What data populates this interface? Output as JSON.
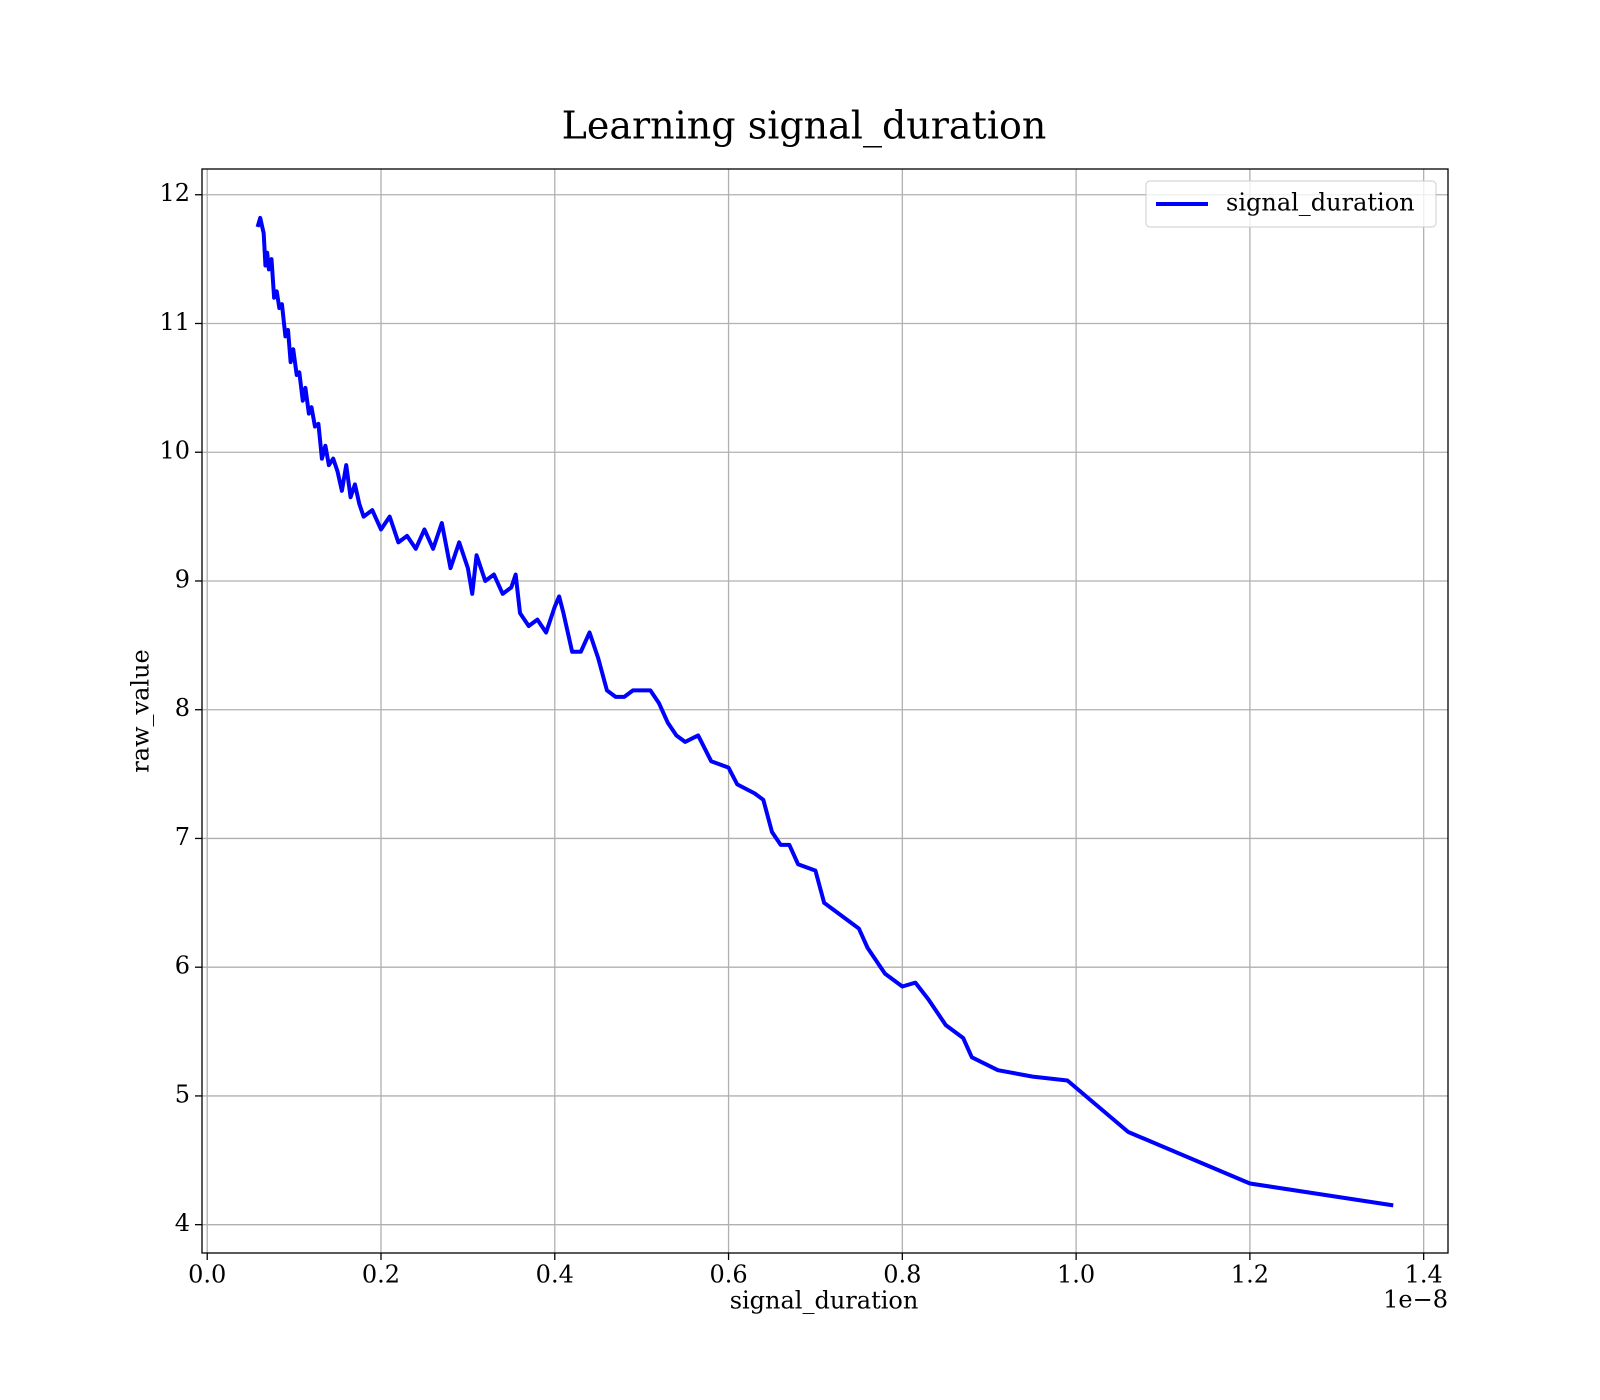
{
  "chart_data": {
    "type": "line",
    "title": "Learning signal_duration",
    "xlabel": "signal_duration",
    "ylabel": "raw_value",
    "x_offset_label": "1e−8",
    "x": [
      5.8e-10,
      6.1e-10,
      6.5e-10,
      6.7e-10,
      6.9e-10,
      7.1e-10,
      7.4e-10,
      7.7e-10,
      8e-10,
      8.3e-10,
      8.6e-10,
      9e-10,
      9.3e-10,
      9.6e-10,
      9.9e-10,
      1.03e-09,
      1.06e-09,
      1.1e-09,
      1.13e-09,
      1.17e-09,
      1.2e-09,
      1.24e-09,
      1.28e-09,
      1.32e-09,
      1.36e-09,
      1.4e-09,
      1.45e-09,
      1.5e-09,
      1.55e-09,
      1.6e-09,
      1.65e-09,
      1.7e-09,
      1.75e-09,
      1.8e-09,
      1.9e-09,
      2e-09,
      2.1e-09,
      2.2e-09,
      2.3e-09,
      2.4e-09,
      2.5e-09,
      2.6e-09,
      2.7e-09,
      2.8e-09,
      2.9e-09,
      3e-09,
      3.05e-09,
      3.1e-09,
      3.2e-09,
      3.3e-09,
      3.4e-09,
      3.5e-09,
      3.55e-09,
      3.6e-09,
      3.7e-09,
      3.8e-09,
      3.9e-09,
      4e-09,
      4.05e-09,
      4.1e-09,
      4.2e-09,
      4.3e-09,
      4.4e-09,
      4.5e-09,
      4.6e-09,
      4.7e-09,
      4.8e-09,
      4.9e-09,
      5e-09,
      5.1e-09,
      5.2e-09,
      5.3e-09,
      5.4e-09,
      5.5e-09,
      5.65e-09,
      5.8e-09,
      6e-09,
      6.1e-09,
      6.3e-09,
      6.4e-09,
      6.5e-09,
      6.6e-09,
      6.7e-09,
      6.8e-09,
      7e-09,
      7.1e-09,
      7.2e-09,
      7.4e-09,
      7.5e-09,
      7.6e-09,
      7.8e-09,
      8e-09,
      8.15e-09,
      8.3e-09,
      8.5e-09,
      8.7e-09,
      8.8e-09,
      9.1e-09,
      9.5e-09,
      9.9e-09,
      1.06e-08,
      1.2e-08,
      1.365e-08
    ],
    "series": [
      {
        "name": "signal_duration",
        "color": "#0000ff",
        "values": [
          11.75,
          11.82,
          11.7,
          11.45,
          11.55,
          11.42,
          11.5,
          11.2,
          11.25,
          11.12,
          11.15,
          10.9,
          10.95,
          10.7,
          10.8,
          10.6,
          10.62,
          10.4,
          10.5,
          10.3,
          10.35,
          10.2,
          10.22,
          9.95,
          10.05,
          9.9,
          9.95,
          9.85,
          9.7,
          9.9,
          9.65,
          9.75,
          9.6,
          9.5,
          9.55,
          9.4,
          9.5,
          9.3,
          9.35,
          9.25,
          9.4,
          9.25,
          9.45,
          9.1,
          9.3,
          9.1,
          8.9,
          9.2,
          9.0,
          9.05,
          8.9,
          8.95,
          9.05,
          8.75,
          8.65,
          8.7,
          8.6,
          8.8,
          8.88,
          8.75,
          8.45,
          8.45,
          8.6,
          8.4,
          8.15,
          8.1,
          8.1,
          8.15,
          8.15,
          8.15,
          8.05,
          7.9,
          7.8,
          7.75,
          7.8,
          7.6,
          7.55,
          7.42,
          7.35,
          7.3,
          7.05,
          6.95,
          6.95,
          6.8,
          6.75,
          6.5,
          6.45,
          6.35,
          6.3,
          6.15,
          5.95,
          5.85,
          5.88,
          5.75,
          5.55,
          5.45,
          5.3,
          5.2,
          5.15,
          5.12,
          4.72,
          4.32,
          4.15
        ]
      }
    ],
    "xlim": [
      -6e-11,
      1.428e-08
    ],
    "xticks": [
      {
        "value": 0,
        "label": "0.0"
      },
      {
        "value": 2e-09,
        "label": "0.2"
      },
      {
        "value": 4e-09,
        "label": "0.4"
      },
      {
        "value": 6e-09,
        "label": "0.6"
      },
      {
        "value": 8e-09,
        "label": "0.8"
      },
      {
        "value": 1e-08,
        "label": "1.0"
      },
      {
        "value": 1.2e-08,
        "label": "1.2"
      },
      {
        "value": 1.4e-08,
        "label": "1.4"
      }
    ],
    "ylim": [
      3.78,
      12.2
    ],
    "yticks": [
      4,
      5,
      6,
      7,
      8,
      9,
      10,
      11,
      12
    ],
    "grid": true,
    "legend": "upper right"
  }
}
